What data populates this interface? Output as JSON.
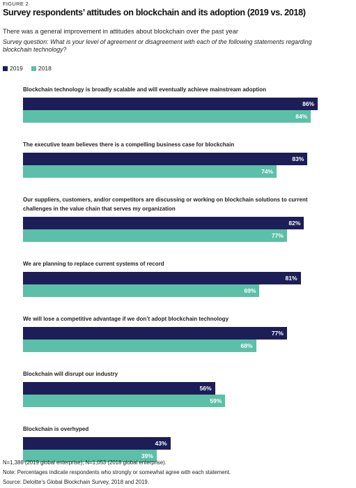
{
  "chart_data": {
    "type": "bar",
    "orientation": "horizontal",
    "figure_label": "FIGURE 2",
    "title": "Survey respondents’ attitudes on blockchain and its adoption (2019 vs. 2018)",
    "subtitle": "There was a general improvement in attitudes about blockchain over the past year",
    "question": "Survey question: What is your level of agreement or disagreement with each of the following statements regarding blockchain technology?",
    "categories": [
      "Blockchain technology is broadly scalable and will eventually achieve mainstream adoption",
      "The executive team believes there is a compelling business case for blockchain",
      "Our suppliers, customers, and/or competitors are discussing or working on blockchain solutions to current challenges in the value chain that serves my organization",
      "We are planning to replace current systems of record",
      "We will lose a competitive advantage if we don’t adopt blockchain technology",
      "Blockchain will disrupt our industry",
      "Blockchain is overhyped"
    ],
    "series": [
      {
        "name": "2019",
        "color": "#1d1d57",
        "values": [
          86,
          83,
          82,
          81,
          77,
          56,
          43
        ],
        "value_labels": [
          "86%",
          "83%",
          "82%",
          "81%",
          "77%",
          "56%",
          "43%"
        ]
      },
      {
        "name": "2018",
        "color": "#5cbfa7",
        "values": [
          84,
          74,
          77,
          69,
          68,
          59,
          39
        ],
        "value_labels": [
          "84%",
          "74%",
          "77%",
          "69%",
          "68%",
          "59%",
          "39%"
        ]
      }
    ],
    "notes": [
      "N=1,386 (2019 global enterprise); N=1,053 (2018 global enterprise).",
      "Note: Percentages indicate respondents who strongly or somewhat agree with each statement.",
      "Source: Deloitte’s Global Blockchain Survey, 2018 and 2019."
    ]
  }
}
